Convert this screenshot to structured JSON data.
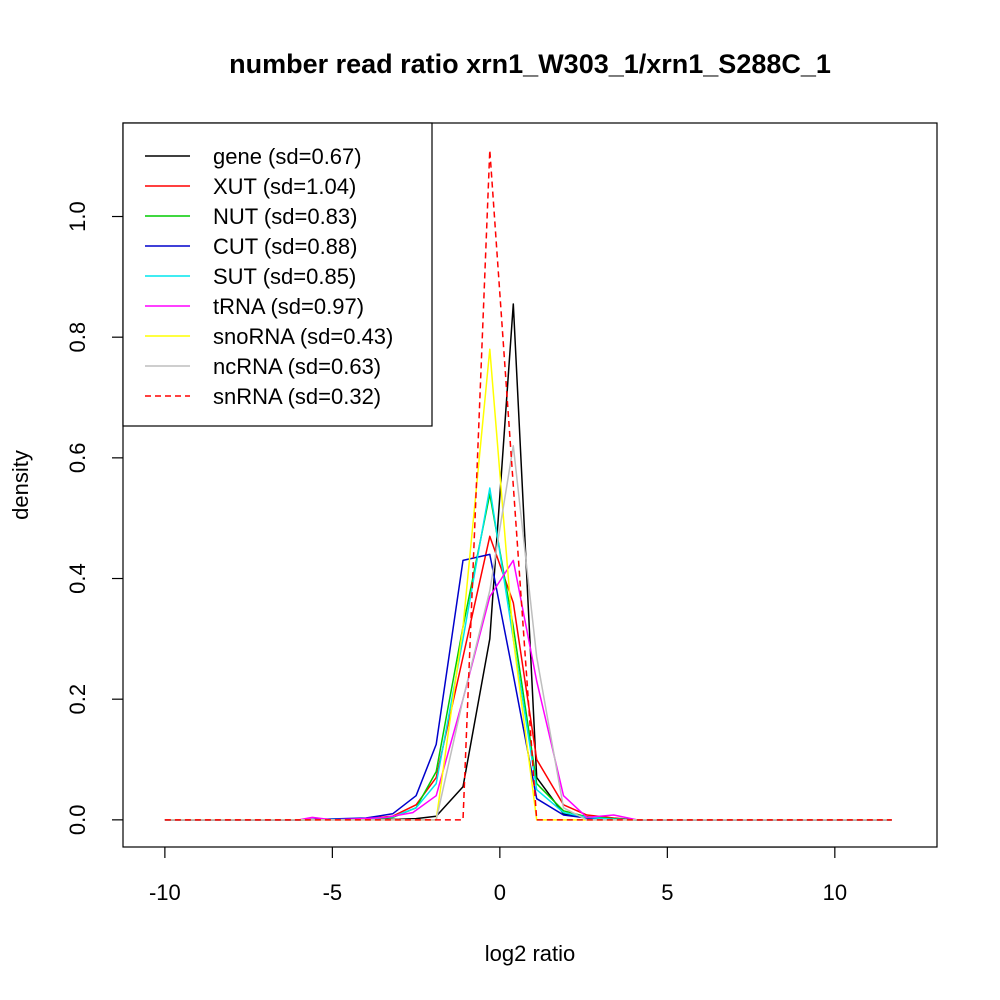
{
  "chart_data": {
    "type": "line",
    "title": "number read ratio xrn1_W303_1/xrn1_S288C_1",
    "xlabel": "log2 ratio",
    "ylabel": "density",
    "xlim": [
      -11.25,
      13.05
    ],
    "ylim": [
      -0.045,
      1.155
    ],
    "xticks": [
      -10,
      -5,
      0,
      5,
      10
    ],
    "yticks": [
      0.0,
      0.2,
      0.4,
      0.6,
      0.8,
      1.0
    ],
    "xtick_labels": [
      "-10",
      "-5",
      "0",
      "5",
      "10"
    ],
    "ytick_labels": [
      "0.0",
      "0.2",
      "0.4",
      "0.6",
      "0.8",
      "1.0"
    ],
    "grid": false,
    "legend_position": "top-left",
    "series": [
      {
        "name": "gene (sd=0.67)",
        "color": "#000000",
        "dash": false,
        "x": [
          -10,
          -6,
          -3,
          -2.5,
          -1.9,
          -1.1,
          -0.3,
          0.4,
          1.1,
          1.9,
          2.6,
          3.4,
          4.1,
          11.7
        ],
        "y": [
          0,
          0,
          0.001,
          0.002,
          0.006,
          0.055,
          0.3,
          0.855,
          0.07,
          0.01,
          0.003,
          0.001,
          0,
          0
        ]
      },
      {
        "name": "XUT (sd=1.04)",
        "color": "#ff0000",
        "dash": false,
        "x": [
          -10,
          -6,
          -4,
          -3.2,
          -2.5,
          -1.9,
          -1.1,
          -0.3,
          0.4,
          1.1,
          1.9,
          2.6,
          3.4,
          4.1,
          11.7
        ],
        "y": [
          0,
          0,
          0.002,
          0.006,
          0.025,
          0.07,
          0.27,
          0.47,
          0.36,
          0.1,
          0.025,
          0.008,
          0.003,
          0,
          0
        ]
      },
      {
        "name": "NUT (sd=0.83)",
        "color": "#00cc00",
        "dash": false,
        "x": [
          -10,
          -6,
          -4,
          -3.2,
          -2.5,
          -1.9,
          -1.1,
          -0.3,
          0.4,
          1.1,
          1.9,
          2.6,
          3.4,
          4.1,
          11.7
        ],
        "y": [
          0,
          0,
          0.001,
          0.004,
          0.02,
          0.08,
          0.32,
          0.54,
          0.32,
          0.06,
          0.015,
          0.005,
          0.002,
          0,
          0
        ]
      },
      {
        "name": "CUT (sd=0.88)",
        "color": "#0000cc",
        "dash": false,
        "x": [
          -10,
          -6,
          -4,
          -3.2,
          -2.5,
          -1.9,
          -1.1,
          -0.3,
          0.4,
          1.1,
          1.9,
          2.6,
          3.4,
          4.1,
          11.7
        ],
        "y": [
          0,
          0,
          0.003,
          0.01,
          0.04,
          0.125,
          0.43,
          0.44,
          0.24,
          0.035,
          0.008,
          0.003,
          0.001,
          0,
          0
        ]
      },
      {
        "name": "SUT (sd=0.85)",
        "color": "#00e5ee",
        "dash": false,
        "x": [
          -10,
          -6,
          -4,
          -3.2,
          -2.5,
          -1.9,
          -1.1,
          -0.3,
          0.4,
          1.1,
          1.9,
          2.6,
          3.4,
          4.1,
          11.7
        ],
        "y": [
          0,
          0,
          0.001,
          0.005,
          0.02,
          0.06,
          0.3,
          0.55,
          0.3,
          0.05,
          0.012,
          0.004,
          0.001,
          0,
          0
        ]
      },
      {
        "name": "tRNA (sd=0.97)",
        "color": "#ff00ff",
        "dash": false,
        "x": [
          -10,
          -6,
          -5.6,
          -5.0,
          -4.1,
          -3.4,
          -2.6,
          -1.9,
          -1.1,
          -0.3,
          0.4,
          1.1,
          1.9,
          2.6,
          3.4,
          4.1,
          11.7
        ],
        "y": [
          0,
          0,
          0.004,
          0,
          0.002,
          0.004,
          0.012,
          0.04,
          0.2,
          0.37,
          0.43,
          0.23,
          0.04,
          0.004,
          0.008,
          0,
          0
        ]
      },
      {
        "name": "snoRNA (sd=0.43)",
        "color": "#ffff00",
        "dash": false,
        "x": [
          -10,
          -1.9,
          -1.1,
          -0.3,
          0.4,
          1.1,
          11.7
        ],
        "y": [
          0,
          0,
          0.32,
          0.78,
          0.3,
          0,
          0
        ]
      },
      {
        "name": "ncRNA (sd=0.63)",
        "color": "#bebebe",
        "dash": false,
        "x": [
          -10,
          -1.9,
          -1.1,
          -0.3,
          0.4,
          1.1,
          1.9,
          2.6,
          11.7
        ],
        "y": [
          0,
          0,
          0.2,
          0.38,
          0.62,
          0.27,
          0.02,
          0,
          0
        ]
      },
      {
        "name": "snRNA (sd=0.32)",
        "color": "#ff0000",
        "dash": true,
        "x": [
          -10,
          -1.1,
          -0.3,
          1.1,
          11.7
        ],
        "y": [
          0,
          0,
          1.11,
          0,
          0
        ]
      }
    ]
  }
}
